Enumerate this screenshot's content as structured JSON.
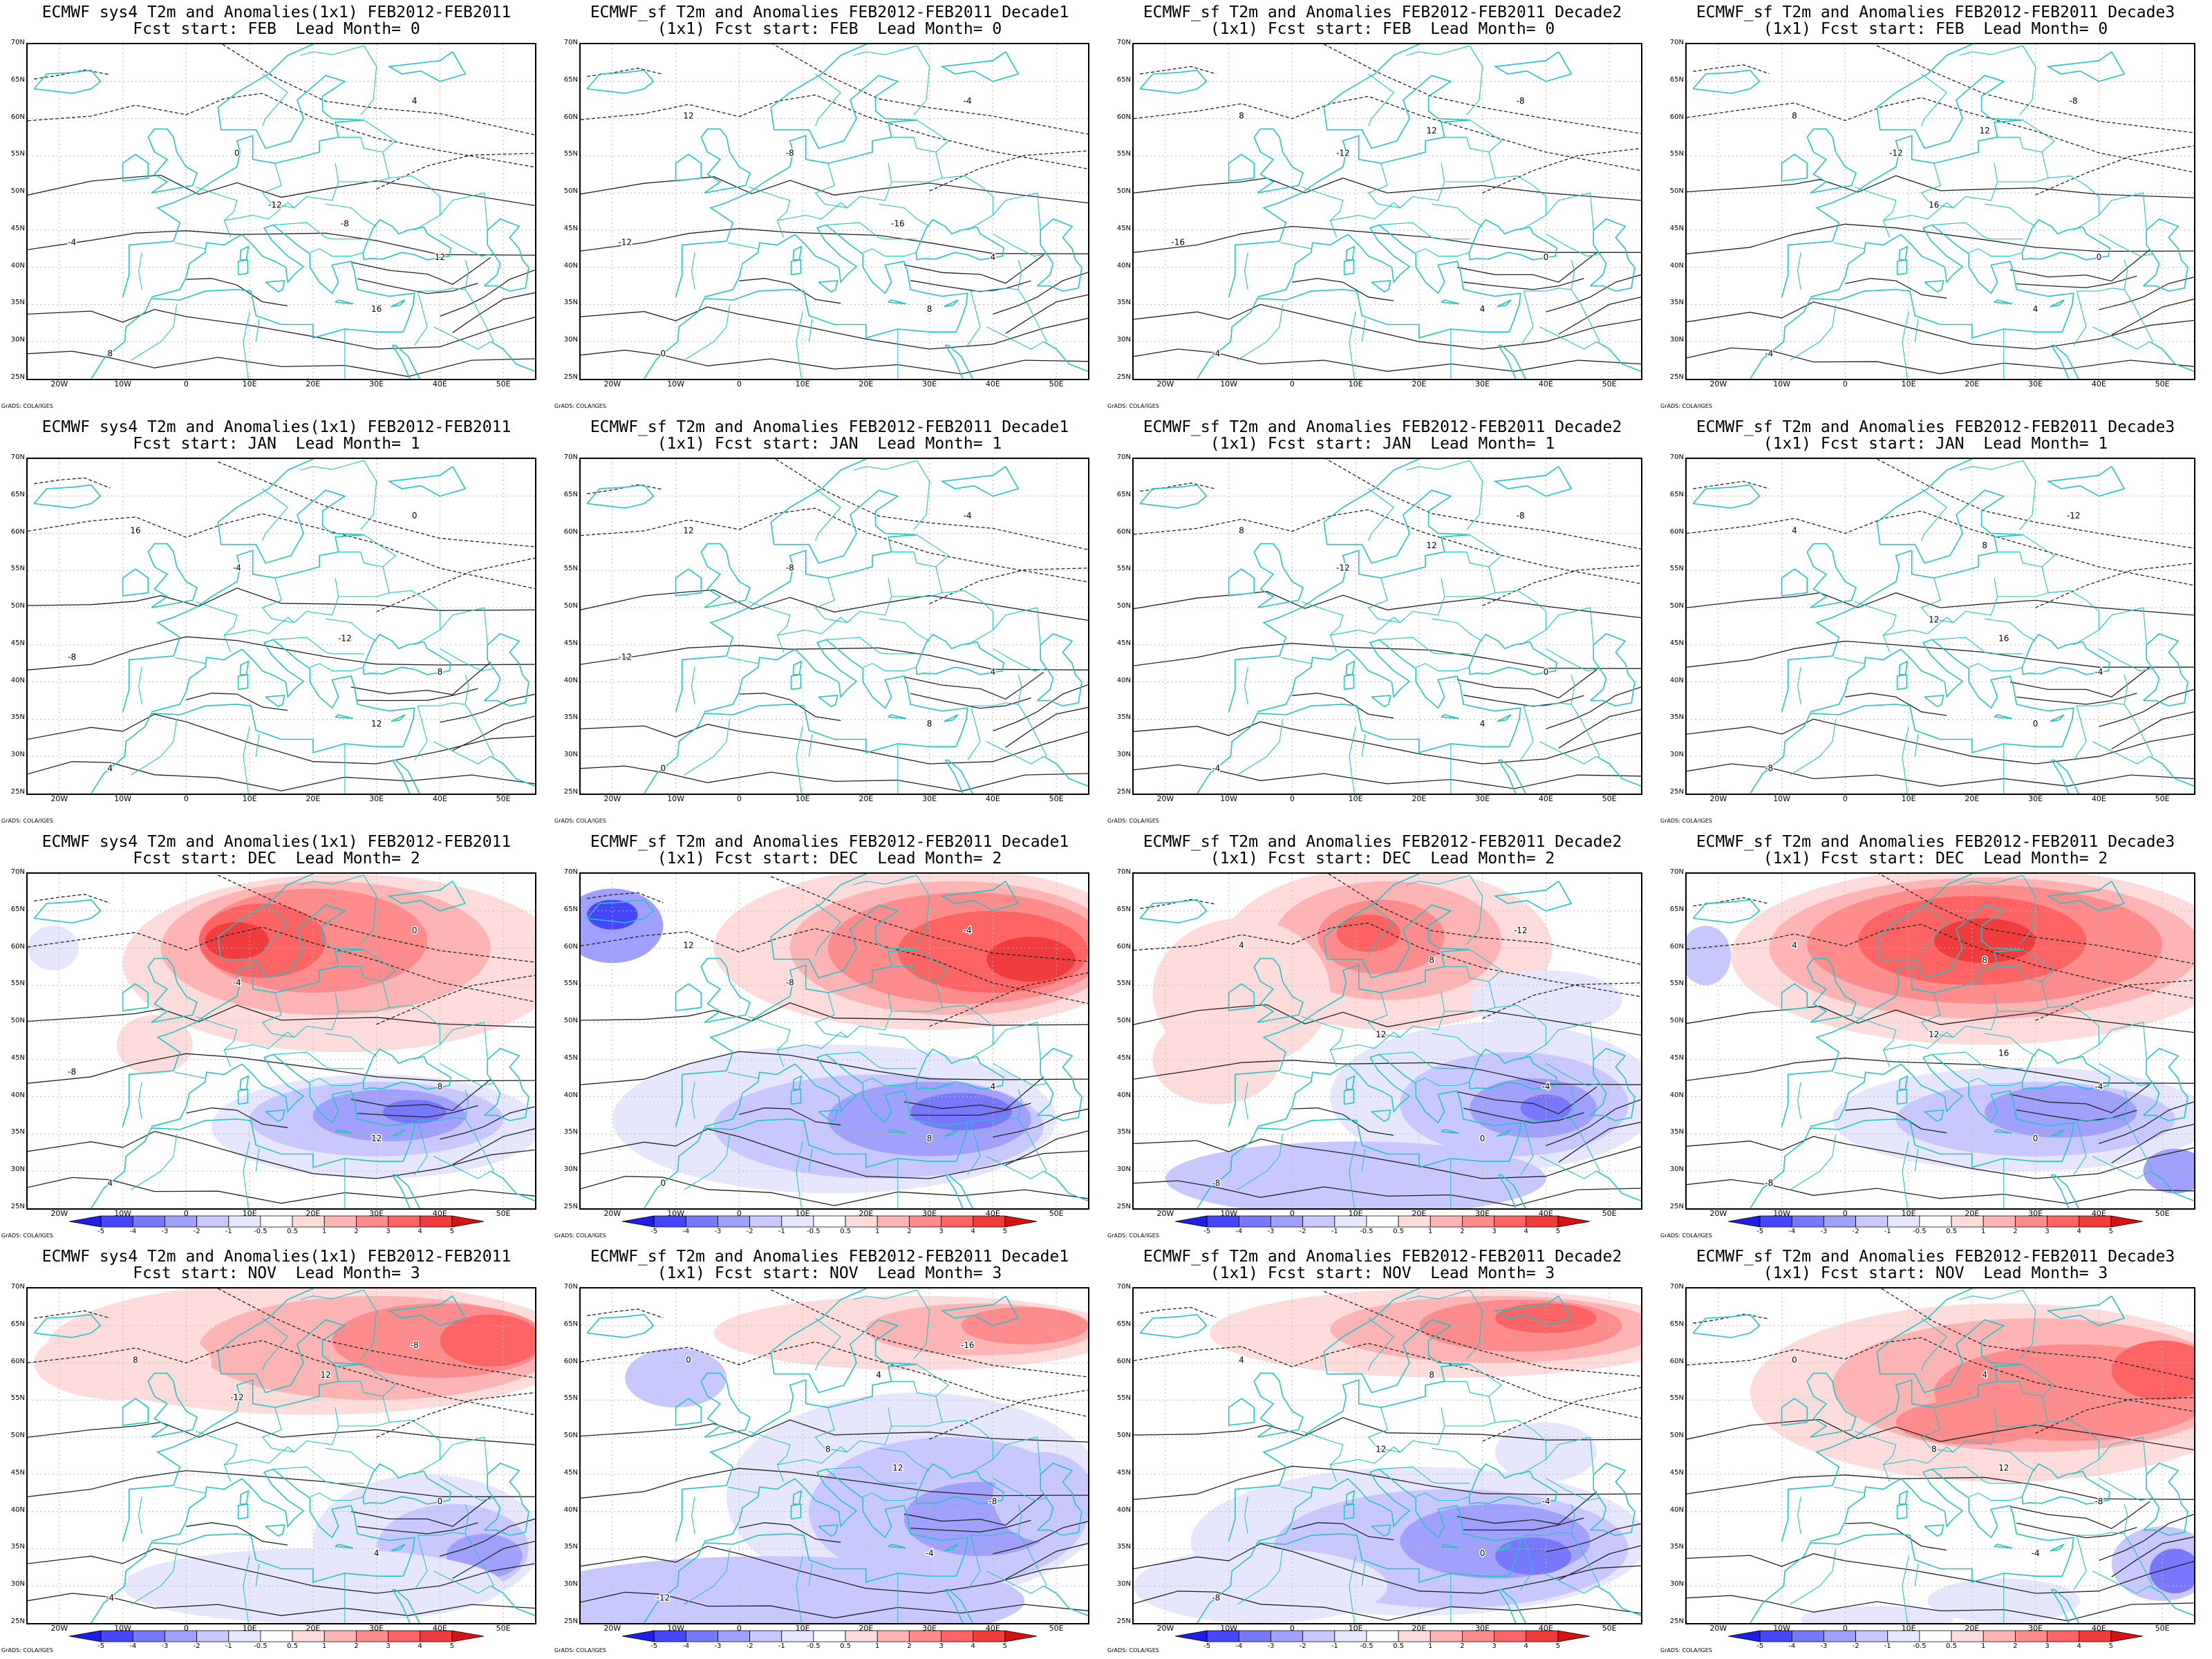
{
  "colorbar": {
    "labels": [
      "-5",
      "-4",
      "-3",
      "-2",
      "-1",
      "-0.5",
      "0.5",
      "1",
      "2",
      "3",
      "4",
      "5"
    ],
    "colors": [
      "#1e1ee6",
      "#4646ff",
      "#7878ff",
      "#a0a0ff",
      "#c8c8ff",
      "#e6e6ff",
      "#ffffff",
      "#ffdcdc",
      "#ffb4b4",
      "#ff8c8c",
      "#ff6464",
      "#f03c3c",
      "#d21414"
    ]
  },
  "axes": {
    "lat_labels": [
      "70N",
      "65N",
      "60N",
      "55N",
      "50N",
      "45N",
      "40N",
      "35N",
      "30N",
      "25N"
    ],
    "lon_labels": [
      "20W",
      "10W",
      "0",
      "10E",
      "20E",
      "30E",
      "40E",
      "50E"
    ]
  },
  "credit": "GrADS: COLA/IGES",
  "rows": [
    {
      "lead": "Fcst start: FEB  Lead Month= 0",
      "has_anomaly": false,
      "panels": [
        {
          "title1": "ECMWF sys4 T2m and Anomalies(1x1) FEB2012-FEB2011",
          "title2": "Fcst start: FEB  Lead Month= 0",
          "contour_labels": [
            "-12",
            "-8",
            "-4",
            "0",
            "4",
            "8",
            "12",
            "16"
          ]
        },
        {
          "title1": "ECMWF_sf T2m and Anomalies FEB2012-FEB2011 Decade1",
          "title2": "(1x1) Fcst start: FEB  Lead Month= 0",
          "contour_labels": [
            "-16",
            "-12",
            "-8",
            "-4",
            "0",
            "4",
            "8",
            "12"
          ]
        },
        {
          "title1": "ECMWF_sf T2m and Anomalies FEB2012-FEB2011 Decade2",
          "title2": "(1x1) Fcst start: FEB  Lead Month= 0",
          "contour_labels": [
            "-16",
            "-12",
            "-8",
            "-4",
            "0",
            "4",
            "8",
            "12"
          ]
        },
        {
          "title1": "ECMWF_sf T2m and Anomalies FEB2012-FEB2011 Decade3",
          "title2": "(1x1) Fcst start: FEB  Lead Month= 0",
          "contour_labels": [
            "-12",
            "-8",
            "-4",
            "0",
            "4",
            "8",
            "12",
            "16"
          ]
        }
      ]
    },
    {
      "lead": "Fcst start: JAN  Lead Month= 1",
      "has_anomaly": false,
      "panels": [
        {
          "title1": "ECMWF sys4 T2m and Anomalies(1x1) FEB2012-FEB2011",
          "title2": "Fcst start: JAN  Lead Month= 1",
          "contour_labels": [
            "-12",
            "-8",
            "-4",
            "0",
            "4",
            "8",
            "12",
            "16"
          ]
        },
        {
          "title1": "ECMWF_sf T2m and Anomalies FEB2012-FEB2011 Decade1",
          "title2": "(1x1) Fcst start: JAN  Lead Month= 1",
          "contour_labels": [
            "-12",
            "-8",
            "-4",
            "0",
            "4",
            "8",
            "12"
          ]
        },
        {
          "title1": "ECMWF_sf T2m and Anomalies FEB2012-FEB2011 Decade2",
          "title2": "(1x1) Fcst start: JAN  Lead Month= 1",
          "contour_labels": [
            "-12",
            "-8",
            "-4",
            "0",
            "4",
            "8",
            "12"
          ]
        },
        {
          "title1": "ECMWF_sf T2m and Anomalies FEB2012-FEB2011 Decade3",
          "title2": "(1x1) Fcst start: JAN  Lead Month= 1",
          "contour_labels": [
            "-12",
            "-8",
            "-4",
            "0",
            "4",
            "8",
            "12",
            "16"
          ]
        }
      ]
    },
    {
      "lead": "Fcst start: DEC  Lead Month= 2",
      "has_anomaly": true,
      "panels": [
        {
          "title1": "ECMWF sys4 T2m and Anomalies(1x1) FEB2012-FEB2011",
          "title2": "Fcst start: DEC  Lead Month= 2",
          "contour_labels": [
            "-8",
            "-4",
            "0",
            "4",
            "8",
            "12"
          ],
          "pattern": "warm-north-cool-south-a"
        },
        {
          "title1": "ECMWF_sf T2m and Anomalies FEB2012-FEB2011 Decade1",
          "title2": "(1x1) Fcst start: DEC  Lead Month= 2",
          "contour_labels": [
            "-8",
            "-4",
            "0",
            "4",
            "8",
            "12"
          ],
          "pattern": "warm-northeast-cool-south"
        },
        {
          "title1": "ECMWF_sf T2m and Anomalies FEB2012-FEB2011 Decade2",
          "title2": "(1x1) Fcst start: DEC  Lead Month= 2",
          "contour_labels": [
            "-12",
            "-8",
            "-4",
            "0",
            "4",
            "8",
            "12"
          ],
          "pattern": "warm-scandinavia-cool-east"
        },
        {
          "title1": "ECMWF_sf T2m and Anomalies FEB2012-FEB2011 Decade3",
          "title2": "(1x1) Fcst start: DEC  Lead Month= 2",
          "contour_labels": [
            "-8",
            "-4",
            "0",
            "4",
            "8",
            "12",
            "16"
          ],
          "pattern": "strong-warm-north-cool-south"
        }
      ]
    },
    {
      "lead": "Fcst start: NOV  Lead Month= 3",
      "has_anomaly": true,
      "panels": [
        {
          "title1": "ECMWF sys4 T2m and Anomalies(1x1) FEB2012-FEB2011",
          "title2": "Fcst start: NOV  Lead Month= 3",
          "contour_labels": [
            "-12",
            "-8",
            "-4",
            "0",
            "4",
            "8",
            "12"
          ],
          "pattern": "warm-north-weak-cool-southeast"
        },
        {
          "title1": "ECMWF_sf T2m and Anomalies FEB2012-FEB2011 Decade1",
          "title2": "(1x1) Fcst start: NOV  Lead Month= 3",
          "contour_labels": [
            "-16",
            "-12",
            "-8",
            "-4",
            "0",
            "4",
            "8",
            "12"
          ],
          "pattern": "warm-north-cool-east"
        },
        {
          "title1": "ECMWF_sf T2m and Anomalies FEB2012-FEB2011 Decade2",
          "title2": "(1x1) Fcst start: NOV  Lead Month= 3",
          "contour_labels": [
            "-8",
            "-4",
            "0",
            "4",
            "8",
            "12"
          ],
          "pattern": "warm-north-cool-south"
        },
        {
          "title1": "ECMWF_sf T2m and Anomalies FEB2012-FEB2011 Decade3",
          "title2": "(1x1) Fcst start: NOV  Lead Month= 3",
          "contour_labels": [
            "-8",
            "-4",
            "0",
            "4",
            "8",
            "12"
          ],
          "pattern": "warm-center-east-cool-southeast"
        }
      ]
    }
  ]
}
